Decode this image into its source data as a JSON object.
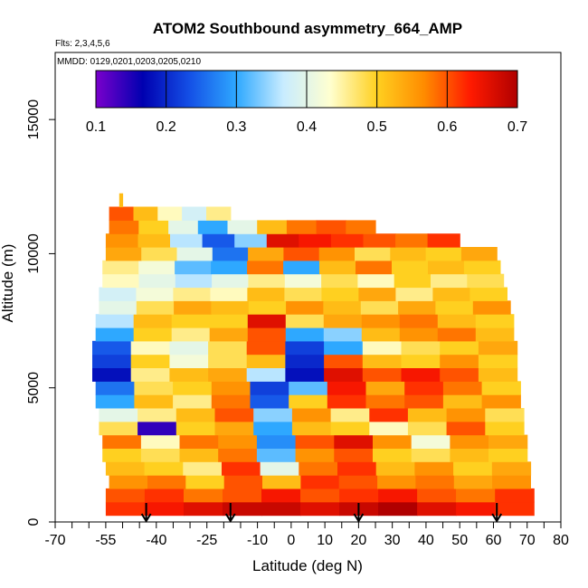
{
  "chart_data": {
    "type": "heatmap",
    "title": "ATOM2 Southbound asymmetry_664_AMP",
    "flights_label": "Flts: 2,3,4,5,6",
    "dates_label": "MMDD: 0129,0201,0203,0205,0210",
    "xlabel": "Latitude (deg N)",
    "ylabel": "Altitude (m)",
    "xlim": [
      -70,
      80
    ],
    "ylim": [
      0,
      17500
    ],
    "x_ticks": [
      -70,
      -55,
      -40,
      -25,
      -10,
      0,
      10,
      20,
      30,
      40,
      50,
      60,
      70,
      80
    ],
    "x_tick_labels": [
      "-70",
      "-55",
      "-40",
      "-25",
      "-10",
      "0",
      "10",
      "20",
      "30",
      "40",
      "50",
      "60",
      "70",
      "80"
    ],
    "y_ticks": [
      0,
      5000,
      10000,
      15000
    ],
    "y_tick_labels": [
      "0",
      "5000",
      "10000",
      "15000"
    ],
    "colorbar": {
      "min": 0.1,
      "max": 0.7,
      "ticks": [
        0.1,
        0.2,
        0.3,
        0.4,
        0.5,
        0.6,
        0.7
      ],
      "tick_labels": [
        "0.1",
        "0.2",
        "0.3",
        "0.4",
        "0.5",
        "0.6",
        "0.7"
      ],
      "colors": [
        "#7a00cc",
        "#0000b0",
        "#1450e6",
        "#2ea8ff",
        "#c8ecff",
        "#ffffd0",
        "#ffd020",
        "#ff8c00",
        "#ff1a00",
        "#b00000"
      ]
    },
    "layers": [
      {
        "alt": 500,
        "lat_min": -55,
        "lat_max": 72,
        "values": [
          0.62,
          0.64,
          0.66,
          0.68,
          0.68,
          0.66,
          0.68,
          0.7,
          0.66,
          0.64,
          0.62
        ]
      },
      {
        "alt": 1000,
        "lat_min": -55,
        "lat_max": 72,
        "values": [
          0.6,
          0.62,
          0.58,
          0.6,
          0.64,
          0.6,
          0.62,
          0.64,
          0.6,
          0.58,
          0.62
        ]
      },
      {
        "alt": 1500,
        "lat_min": -54,
        "lat_max": 71,
        "values": [
          0.56,
          0.58,
          0.5,
          0.6,
          0.52,
          0.62,
          0.6,
          0.56,
          0.58,
          0.54,
          0.56
        ]
      },
      {
        "alt": 2000,
        "lat_min": -55,
        "lat_max": 71,
        "values": [
          0.52,
          0.5,
          0.46,
          0.62,
          0.4,
          0.58,
          0.62,
          0.52,
          0.56,
          0.5,
          0.54
        ]
      },
      {
        "alt": 2500,
        "lat_min": -56,
        "lat_max": 70,
        "values": [
          0.5,
          0.48,
          0.52,
          0.58,
          0.32,
          0.56,
          0.6,
          0.5,
          0.48,
          0.52,
          0.5
        ]
      },
      {
        "alt": 3000,
        "lat_min": -56,
        "lat_max": 70,
        "values": [
          0.58,
          0.44,
          0.58,
          0.56,
          0.28,
          0.6,
          0.66,
          0.56,
          0.42,
          0.56,
          0.54
        ]
      },
      {
        "alt": 3500,
        "lat_min": -57,
        "lat_max": 69,
        "values": [
          0.48,
          0.14,
          0.5,
          0.54,
          0.3,
          0.52,
          0.5,
          0.44,
          0.48,
          0.6,
          0.5
        ]
      },
      {
        "alt": 4000,
        "lat_min": -57,
        "lat_max": 69,
        "values": [
          0.4,
          0.46,
          0.52,
          0.6,
          0.34,
          0.56,
          0.46,
          0.62,
          0.52,
          0.56,
          0.48
        ]
      },
      {
        "alt": 4500,
        "lat_min": -58,
        "lat_max": 68,
        "values": [
          0.3,
          0.52,
          0.46,
          0.58,
          0.24,
          0.5,
          0.62,
          0.58,
          0.6,
          0.52,
          0.56
        ]
      },
      {
        "alt": 5000,
        "lat_min": -58,
        "lat_max": 68,
        "values": [
          0.26,
          0.48,
          0.5,
          0.56,
          0.22,
          0.32,
          0.64,
          0.54,
          0.62,
          0.58,
          0.5
        ]
      },
      {
        "alt": 5500,
        "lat_min": -59,
        "lat_max": 67,
        "values": [
          0.18,
          0.46,
          0.52,
          0.54,
          0.36,
          0.18,
          0.66,
          0.6,
          0.64,
          0.6,
          0.52
        ]
      },
      {
        "alt": 6000,
        "lat_min": -59,
        "lat_max": 67,
        "values": [
          0.22,
          0.5,
          0.42,
          0.48,
          0.52,
          0.2,
          0.6,
          0.52,
          0.5,
          0.56,
          0.5
        ]
      },
      {
        "alt": 6500,
        "lat_min": -59,
        "lat_max": 67,
        "values": [
          0.24,
          0.44,
          0.4,
          0.48,
          0.6,
          0.22,
          0.3,
          0.44,
          0.48,
          0.5,
          0.54
        ]
      },
      {
        "alt": 7000,
        "lat_min": -58,
        "lat_max": 66,
        "values": [
          0.3,
          0.5,
          0.46,
          0.54,
          0.6,
          0.3,
          0.34,
          0.52,
          0.56,
          0.58,
          0.52
        ]
      },
      {
        "alt": 7500,
        "lat_min": -58,
        "lat_max": 66,
        "values": [
          0.36,
          0.52,
          0.5,
          0.5,
          0.66,
          0.48,
          0.54,
          0.56,
          0.58,
          0.52,
          0.5
        ]
      },
      {
        "alt": 8000,
        "lat_min": -57,
        "lat_max": 65,
        "values": [
          0.4,
          0.48,
          0.54,
          0.52,
          0.5,
          0.56,
          0.52,
          0.48,
          0.54,
          0.5,
          0.56
        ]
      },
      {
        "alt": 8500,
        "lat_min": -57,
        "lat_max": 64,
        "values": [
          0.38,
          0.42,
          0.46,
          0.44,
          0.52,
          0.48,
          0.5,
          0.54,
          0.46,
          0.52,
          0.5
        ]
      },
      {
        "alt": 9000,
        "lat_min": -56,
        "lat_max": 63,
        "values": [
          0.44,
          0.4,
          0.36,
          0.4,
          0.46,
          0.42,
          0.48,
          0.44,
          0.5,
          0.46,
          0.48
        ]
      },
      {
        "alt": 9500,
        "lat_min": -56,
        "lat_max": 62,
        "values": [
          0.46,
          0.42,
          0.32,
          0.3,
          0.58,
          0.3,
          0.52,
          0.58,
          0.5,
          0.52,
          0.5
        ]
      },
      {
        "alt": 10000,
        "lat_min": -55,
        "lat_max": 61,
        "values": [
          0.54,
          0.48,
          0.4,
          0.26,
          0.54,
          0.6,
          0.56,
          0.48,
          0.52,
          0.5,
          0.54
        ]
      },
      {
        "alt": 10500,
        "lat_min": -55,
        "lat_max": 50,
        "values": [
          0.56,
          0.52,
          0.36,
          0.24,
          0.34,
          0.66,
          0.64,
          0.62,
          0.6,
          0.58,
          0.62
        ]
      },
      {
        "alt": 11000,
        "lat_min": -54,
        "lat_max": 25,
        "values": [
          0.58,
          0.5,
          0.4,
          0.3,
          0.4,
          0.52,
          0.58,
          0.6,
          0.58
        ]
      },
      {
        "alt": 11500,
        "lat_min": -54,
        "lat_max": -18,
        "values": [
          0.6,
          0.52,
          0.44,
          0.38,
          0.46
        ]
      },
      {
        "alt": 12000,
        "lat_min": -51,
        "lat_max": -50,
        "values": [
          0.52
        ]
      }
    ],
    "flight_arrows_lat": [
      -43,
      -18,
      20,
      61
    ]
  }
}
